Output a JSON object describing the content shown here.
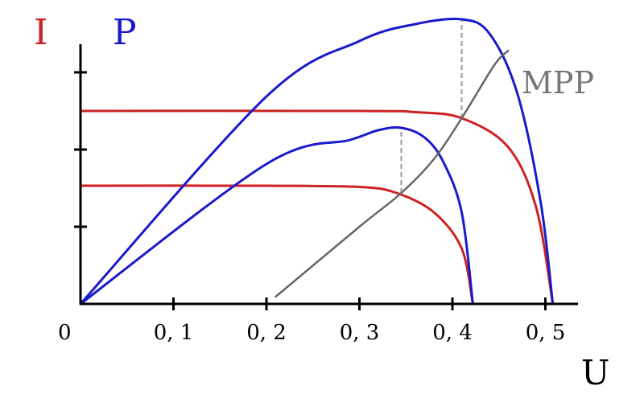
{
  "chart_data": {
    "type": "line",
    "title": "",
    "xlabel": "U",
    "ylabels": [
      "I",
      "P"
    ],
    "xlim": [
      0,
      0.55
    ],
    "x_ticks": [
      {
        "value": 0,
        "label": "0"
      },
      {
        "value": 0.1,
        "label": "0, 1"
      },
      {
        "value": 0.2,
        "label": "0, 2"
      },
      {
        "value": 0.3,
        "label": "0, 3"
      },
      {
        "value": 0.4,
        "label": "0, 4"
      },
      {
        "value": 0.5,
        "label": "0, 5"
      }
    ],
    "y_tick_count": 3,
    "series": [
      {
        "kind": "current",
        "color": "#cc2222",
        "points": [
          [
            0,
            0.49
          ],
          [
            0.2,
            0.49
          ],
          [
            0.3,
            0.485
          ],
          [
            0.34,
            0.46
          ],
          [
            0.38,
            0.38
          ],
          [
            0.41,
            0.23
          ],
          [
            0.422,
            0
          ]
        ]
      },
      {
        "kind": "current",
        "color": "#cc2222",
        "points": [
          [
            0,
            0.8
          ],
          [
            0.3,
            0.8
          ],
          [
            0.36,
            0.795
          ],
          [
            0.41,
            0.77
          ],
          [
            0.46,
            0.65
          ],
          [
            0.49,
            0.4
          ],
          [
            0.508,
            0
          ]
        ]
      },
      {
        "kind": "power",
        "color": "#1a1acc",
        "points": [
          [
            0,
            0
          ],
          [
            0.2,
            0.58
          ],
          [
            0.29,
            0.68
          ],
          [
            0.32,
            0.72
          ],
          [
            0.345,
            0.73
          ],
          [
            0.37,
            0.69
          ],
          [
            0.39,
            0.59
          ],
          [
            0.41,
            0.38
          ],
          [
            0.422,
            0
          ]
        ]
      },
      {
        "kind": "power",
        "color": "#1a1acc",
        "points": [
          [
            0,
            0
          ],
          [
            0.2,
            0.86
          ],
          [
            0.3,
            1.09
          ],
          [
            0.36,
            1.16
          ],
          [
            0.41,
            1.18
          ],
          [
            0.44,
            1.12
          ],
          [
            0.47,
            0.87
          ],
          [
            0.495,
            0.42
          ],
          [
            0.508,
            0
          ]
        ]
      },
      {
        "kind": "mpp",
        "name": "MPP",
        "color": "#666666",
        "points": [
          [
            0.21,
            0.03
          ],
          [
            0.3,
            0.32
          ],
          [
            0.345,
            0.46
          ],
          [
            0.38,
            0.6
          ],
          [
            0.41,
            0.77
          ],
          [
            0.445,
            0.99
          ],
          [
            0.46,
            1.05
          ]
        ]
      }
    ],
    "mpp_markers": [
      {
        "x": 0.345,
        "y_from": 0.46,
        "y_to": 0.73
      },
      {
        "x": 0.41,
        "y_from": 0.77,
        "y_to": 1.18
      }
    ],
    "grid": false,
    "legend": "none"
  }
}
